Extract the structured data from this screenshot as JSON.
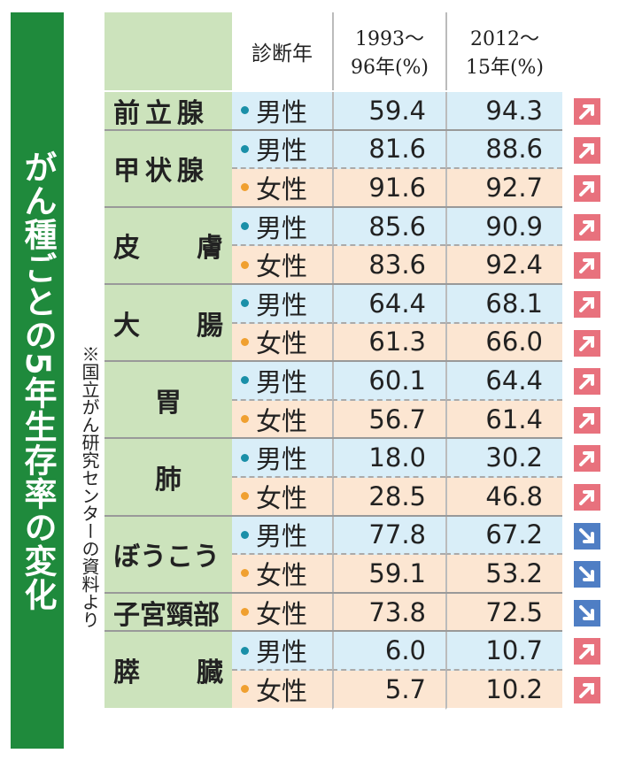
{
  "title": "がん種ごとの5年生存率の変化",
  "note": "※国立がん研究センターの資料より",
  "header": {
    "diagnosis_year": "診断年",
    "period1": [
      "1993～",
      "96年(%)"
    ],
    "period2": [
      "2012～",
      "15年(%)"
    ]
  },
  "groups": [
    {
      "name": "前立腺",
      "rows": [
        {
          "sex": "男性",
          "values": [
            "59.4",
            "94.3"
          ],
          "trend": "up"
        }
      ]
    },
    {
      "name": "甲状腺",
      "rows": [
        {
          "sex": "男性",
          "values": [
            "81.6",
            "88.6"
          ],
          "trend": "up"
        },
        {
          "sex": "女性",
          "values": [
            "91.6",
            "92.7"
          ],
          "trend": "up"
        }
      ]
    },
    {
      "name": "皮膚",
      "rows": [
        {
          "sex": "男性",
          "values": [
            "85.6",
            "90.9"
          ],
          "trend": "up"
        },
        {
          "sex": "女性",
          "values": [
            "83.6",
            "92.4"
          ],
          "trend": "up"
        }
      ]
    },
    {
      "name": "大腸",
      "rows": [
        {
          "sex": "男性",
          "values": [
            "64.4",
            "68.1"
          ],
          "trend": "up"
        },
        {
          "sex": "女性",
          "values": [
            "61.3",
            "66.0"
          ],
          "trend": "up"
        }
      ]
    },
    {
      "name": "胃",
      "rows": [
        {
          "sex": "男性",
          "values": [
            "60.1",
            "64.4"
          ],
          "trend": "up"
        },
        {
          "sex": "女性",
          "values": [
            "56.7",
            "61.4"
          ],
          "trend": "up"
        }
      ]
    },
    {
      "name": "肺",
      "rows": [
        {
          "sex": "男性",
          "values": [
            "18.0",
            "30.2"
          ],
          "trend": "up"
        },
        {
          "sex": "女性",
          "values": [
            "28.5",
            "46.8"
          ],
          "trend": "up"
        }
      ]
    },
    {
      "name": "ぼうこう",
      "rows": [
        {
          "sex": "男性",
          "values": [
            "77.8",
            "67.2"
          ],
          "trend": "down"
        },
        {
          "sex": "女性",
          "values": [
            "59.1",
            "53.2"
          ],
          "trend": "down"
        }
      ]
    },
    {
      "name": "子宮頸部",
      "rows": [
        {
          "sex": "女性",
          "values": [
            "73.8",
            "72.5"
          ],
          "trend": "down"
        }
      ]
    },
    {
      "name": "膵臓",
      "rows": [
        {
          "sex": "男性",
          "values": [
            "6.0",
            "10.7"
          ],
          "trend": "up"
        },
        {
          "sex": "女性",
          "values": [
            "5.7",
            "10.2"
          ],
          "trend": "up"
        }
      ]
    }
  ]
}
